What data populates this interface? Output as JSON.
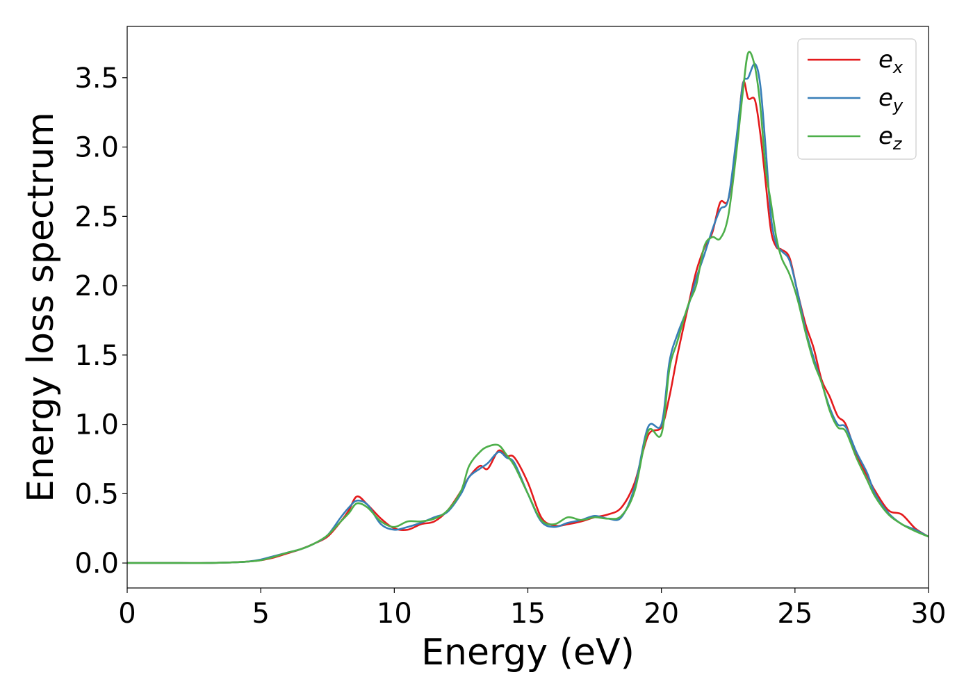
{
  "chart_data": {
    "type": "line",
    "title": "",
    "xlabel": "Energy (eV)",
    "ylabel": "Energy loss spectrum",
    "xlim": [
      0,
      30
    ],
    "ylim": [
      -0.18,
      3.87
    ],
    "xticks": [
      0,
      5,
      10,
      15,
      20,
      25,
      30
    ],
    "xtick_labels": [
      "0",
      "5",
      "10",
      "15",
      "20",
      "25",
      "30"
    ],
    "yticks": [
      0,
      0.5,
      1,
      1.5,
      2,
      2.5,
      3,
      3.5
    ],
    "ytick_labels": [
      "0.0",
      "0.5",
      "1.0",
      "1.5",
      "2.0",
      "2.5",
      "3.0",
      "3.5"
    ],
    "grid": false,
    "legend_position": "top-right",
    "series": [
      {
        "name": "e_x",
        "legend_base": "e",
        "legend_sub": "x",
        "color": "#e41a1c",
        "x": [
          0,
          1,
          2,
          3,
          4,
          4.5,
          5,
          5.5,
          6,
          6.5,
          7,
          7.5,
          8,
          8.3,
          8.6,
          9,
          9.5,
          10,
          10.5,
          11,
          11.5,
          12,
          12.5,
          12.8,
          13.2,
          13.5,
          13.9,
          14.2,
          14.5,
          15,
          15.5,
          16,
          16.5,
          17,
          17.5,
          18,
          18.5,
          19,
          19.5,
          20,
          20.3,
          20.6,
          21,
          21.3,
          21.6,
          21.9,
          22.2,
          22.5,
          22.8,
          23.05,
          23.25,
          23.5,
          23.7,
          23.9,
          24.1,
          24.3,
          24.5,
          24.8,
          25.1,
          25.4,
          25.7,
          26,
          26.3,
          26.6,
          26.9,
          27.3,
          27.7,
          28,
          28.5,
          29,
          29.5,
          30
        ],
        "y": [
          0.0,
          0.0,
          0.0,
          0.0,
          0.005,
          0.01,
          0.02,
          0.04,
          0.07,
          0.1,
          0.14,
          0.19,
          0.3,
          0.38,
          0.48,
          0.42,
          0.32,
          0.25,
          0.24,
          0.28,
          0.3,
          0.38,
          0.52,
          0.62,
          0.7,
          0.68,
          0.81,
          0.77,
          0.76,
          0.58,
          0.33,
          0.27,
          0.28,
          0.3,
          0.33,
          0.35,
          0.4,
          0.58,
          0.92,
          0.98,
          1.2,
          1.5,
          1.85,
          2.1,
          2.27,
          2.38,
          2.6,
          2.62,
          3.0,
          3.46,
          3.35,
          3.34,
          3.1,
          2.75,
          2.4,
          2.28,
          2.26,
          2.2,
          1.95,
          1.72,
          1.55,
          1.32,
          1.2,
          1.06,
          1.0,
          0.78,
          0.63,
          0.52,
          0.38,
          0.35,
          0.25,
          0.19
        ]
      },
      {
        "name": "e_y",
        "legend_base": "e",
        "legend_sub": "y",
        "color": "#377eb8",
        "x": [
          0,
          1,
          2,
          3,
          4,
          4.5,
          5,
          5.5,
          6,
          6.5,
          7,
          7.5,
          8,
          8.3,
          8.6,
          9,
          9.5,
          10,
          10.5,
          11,
          11.5,
          12,
          12.5,
          12.8,
          13.2,
          13.5,
          13.9,
          14.2,
          14.5,
          15,
          15.5,
          16,
          16.5,
          17,
          17.5,
          18,
          18.5,
          19,
          19.5,
          20,
          20.3,
          20.6,
          21,
          21.3,
          21.6,
          21.9,
          22.2,
          22.5,
          22.8,
          23.05,
          23.25,
          23.5,
          23.7,
          23.9,
          24.1,
          24.3,
          24.5,
          24.8,
          25.1,
          25.4,
          25.7,
          26,
          26.3,
          26.6,
          26.9,
          27.3,
          27.7,
          28,
          28.5,
          29,
          29.5,
          30
        ],
        "y": [
          0.0,
          0.0,
          0.0,
          0.0,
          0.005,
          0.01,
          0.025,
          0.05,
          0.075,
          0.1,
          0.14,
          0.2,
          0.33,
          0.4,
          0.45,
          0.42,
          0.28,
          0.24,
          0.26,
          0.29,
          0.33,
          0.37,
          0.5,
          0.62,
          0.68,
          0.72,
          0.8,
          0.76,
          0.72,
          0.5,
          0.3,
          0.26,
          0.29,
          0.31,
          0.34,
          0.32,
          0.33,
          0.55,
          0.98,
          1.0,
          1.45,
          1.65,
          1.85,
          2.05,
          2.22,
          2.4,
          2.55,
          2.62,
          3.05,
          3.45,
          3.5,
          3.6,
          3.45,
          3.0,
          2.5,
          2.3,
          2.25,
          2.18,
          1.95,
          1.68,
          1.48,
          1.3,
          1.12,
          1.0,
          0.98,
          0.8,
          0.65,
          0.5,
          0.36,
          0.28,
          0.24,
          0.19
        ]
      },
      {
        "name": "e_z",
        "legend_base": "e",
        "legend_sub": "z",
        "color": "#4daf4a",
        "x": [
          0,
          1,
          2,
          3,
          4,
          4.5,
          5,
          5.5,
          6,
          6.5,
          7,
          7.5,
          8,
          8.3,
          8.6,
          9,
          9.5,
          10,
          10.5,
          11,
          11.5,
          12,
          12.5,
          12.8,
          13.2,
          13.5,
          13.9,
          14.2,
          14.5,
          15,
          15.5,
          16,
          16.5,
          17,
          17.5,
          18,
          18.5,
          19,
          19.5,
          20,
          20.3,
          20.6,
          21,
          21.3,
          21.6,
          21.9,
          22.2,
          22.5,
          22.8,
          23.05,
          23.25,
          23.5,
          23.7,
          23.9,
          24.1,
          24.3,
          24.5,
          24.8,
          25.1,
          25.4,
          25.7,
          26,
          26.3,
          26.6,
          26.9,
          27.3,
          27.7,
          28,
          28.5,
          29,
          29.5,
          30
        ],
        "y": [
          0.0,
          0.0,
          0.0,
          0.0,
          0.005,
          0.01,
          0.02,
          0.045,
          0.075,
          0.1,
          0.14,
          0.2,
          0.3,
          0.36,
          0.43,
          0.4,
          0.3,
          0.26,
          0.3,
          0.3,
          0.32,
          0.38,
          0.52,
          0.7,
          0.8,
          0.84,
          0.85,
          0.78,
          0.7,
          0.5,
          0.31,
          0.28,
          0.33,
          0.31,
          0.33,
          0.32,
          0.34,
          0.52,
          0.95,
          0.93,
          1.4,
          1.6,
          1.86,
          2.0,
          2.28,
          2.35,
          2.34,
          2.5,
          2.95,
          3.4,
          3.68,
          3.58,
          3.3,
          2.85,
          2.6,
          2.35,
          2.2,
          2.08,
          1.9,
          1.66,
          1.45,
          1.3,
          1.1,
          0.98,
          0.95,
          0.76,
          0.6,
          0.48,
          0.35,
          0.28,
          0.23,
          0.19
        ]
      }
    ]
  }
}
